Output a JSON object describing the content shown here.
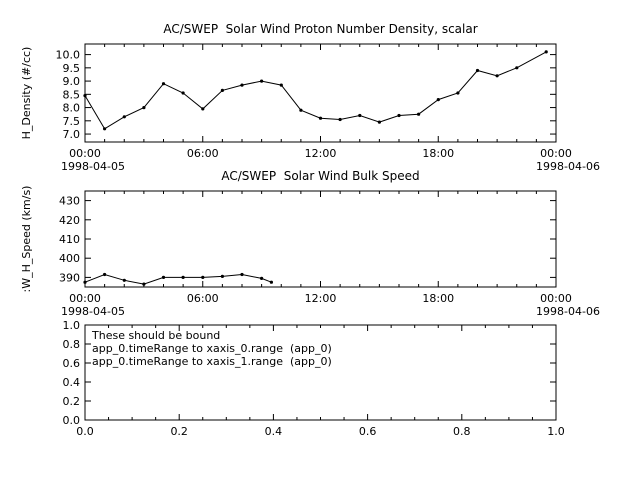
{
  "app": {
    "background": "#ffffff",
    "line_color": "#000000"
  },
  "chart_data": [
    {
      "type": "line",
      "title": "AC/SWEP  Solar Wind Proton Number Density, scalar",
      "ylabel": "H_Density (#/cc)",
      "xlabel": "",
      "ylim": [
        6.7,
        10.4
      ],
      "yticks": [
        7.0,
        7.5,
        8.0,
        8.5,
        9.0,
        9.5,
        10.0
      ],
      "ytick_labels": [
        "7.0",
        "7.5",
        "8.0",
        "8.5",
        "9.0",
        "9.5",
        "10.0"
      ],
      "xlim": [
        0,
        24
      ],
      "xticks": [
        0,
        6,
        12,
        18,
        24
      ],
      "xtick_labels": [
        "00:00",
        "06:00",
        "12:00",
        "18:00",
        "00:00"
      ],
      "x_minor_step": 1,
      "date_left": "1998-04-05",
      "date_right": "1998-04-06",
      "grid": false,
      "legend": null,
      "series": [
        {
          "name": "H_Density",
          "x": [
            0,
            1,
            2,
            3,
            4,
            5,
            6,
            7,
            8,
            9,
            10,
            11,
            12,
            13,
            14,
            15,
            16,
            17,
            18,
            19,
            20,
            21,
            22,
            23.5
          ],
          "y": [
            8.45,
            7.2,
            7.65,
            8.0,
            8.9,
            8.55,
            7.95,
            8.65,
            8.85,
            9.0,
            8.85,
            7.9,
            7.6,
            7.55,
            7.7,
            7.45,
            7.7,
            7.75,
            8.3,
            8.55,
            9.4,
            9.2,
            9.5,
            10.1
          ]
        }
      ],
      "annotation": []
    },
    {
      "type": "line",
      "title": "AC/SWEP  Solar Wind Bulk Speed",
      "ylabel": ":W_H_Speed (km/s)",
      "xlabel": "",
      "ylim": [
        385,
        435
      ],
      "yticks": [
        390,
        400,
        410,
        420,
        430
      ],
      "ytick_labels": [
        "390",
        "400",
        "410",
        "420",
        "430"
      ],
      "xlim": [
        0,
        24
      ],
      "xticks": [
        0,
        6,
        12,
        18,
        24
      ],
      "xtick_labels": [
        "00:00",
        "06:00",
        "12:00",
        "18:00",
        "00:00"
      ],
      "x_minor_step": 1,
      "date_left": "1998-04-05",
      "date_right": "1998-04-06",
      "grid": false,
      "legend": null,
      "series": [
        {
          "name": "SW_H_Speed",
          "x": [
            0,
            1,
            2,
            3,
            4,
            5,
            6,
            7,
            8,
            9,
            9.5
          ],
          "y": [
            387.5,
            391.5,
            388.5,
            386.5,
            390,
            390,
            390,
            390.5,
            391.5,
            389.5,
            387.5
          ]
        }
      ],
      "annotation": []
    },
    {
      "type": "line",
      "title": "",
      "ylabel": "",
      "xlabel": "",
      "ylim": [
        0,
        1
      ],
      "yticks": [
        0,
        0.2,
        0.4,
        0.6,
        0.8,
        1.0
      ],
      "ytick_labels": [
        "0.0",
        "0.2",
        "0.4",
        "0.6",
        "0.8",
        "1.0"
      ],
      "xlim": [
        0,
        1
      ],
      "xticks": [
        0,
        0.2,
        0.4,
        0.6,
        0.8,
        1.0
      ],
      "xtick_labels": [
        "0.0",
        "0.2",
        "0.4",
        "0.6",
        "0.8",
        "1.0"
      ],
      "x_minor_step": 0.05,
      "date_left": "",
      "date_right": "",
      "grid": false,
      "legend": null,
      "series": [],
      "annotation": [
        "These should be bound",
        "app_0.timeRange to xaxis_0.range  (app_0)",
        "app_0.timeRange to xaxis_1.range  (app_0)"
      ]
    }
  ]
}
